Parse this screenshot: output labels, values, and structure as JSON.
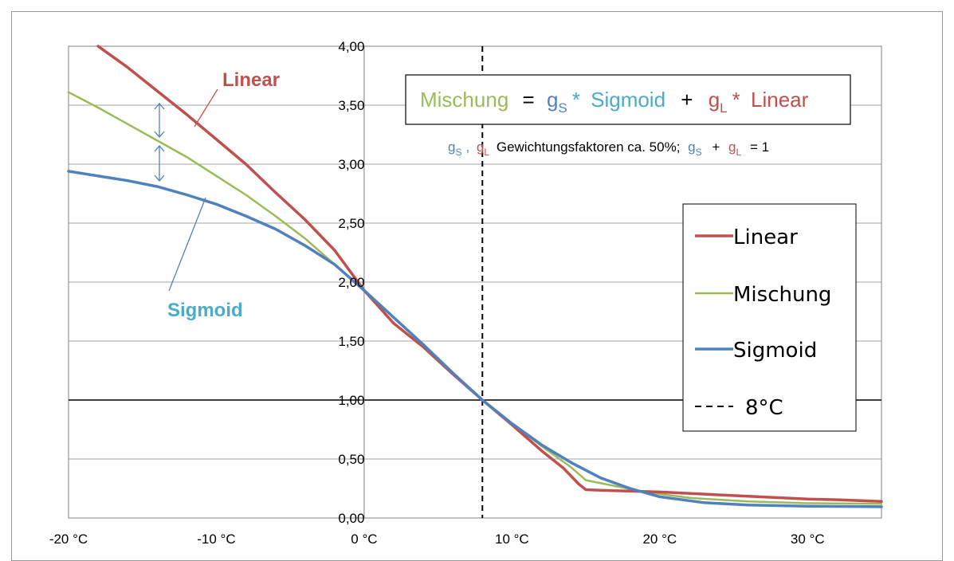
{
  "chart_data": {
    "type": "line",
    "xlim": [
      -20,
      35
    ],
    "ylim": [
      0,
      4
    ],
    "x_ticks": [
      {
        "value": -20,
        "label": "-20 °C"
      },
      {
        "value": -10,
        "label": "-10 °C"
      },
      {
        "value": 0,
        "label": "0 °C"
      },
      {
        "value": 10,
        "label": "10 °C"
      },
      {
        "value": 20,
        "label": "20 °C"
      },
      {
        "value": 30,
        "label": "30 °C"
      }
    ],
    "y_ticks": [
      {
        "value": 0,
        "label": "0,00"
      },
      {
        "value": 0.5,
        "label": "0,50"
      },
      {
        "value": 1,
        "label": "1,00"
      },
      {
        "value": 1.5,
        "label": "1,50"
      },
      {
        "value": 2,
        "label": "2,00"
      },
      {
        "value": 2.5,
        "label": "2,50"
      },
      {
        "value": 3,
        "label": "3,00"
      },
      {
        "value": 3.5,
        "label": "3,50"
      },
      {
        "value": 4,
        "label": "4,00"
      }
    ],
    "grid": "horizontal",
    "reference_lines": {
      "vertical_x": 8,
      "horizontal_y": 1
    },
    "series": [
      {
        "name": "Linear",
        "color": "#c0504d",
        "points": [
          [
            -18,
            4.0
          ],
          [
            -16,
            3.82
          ],
          [
            -14,
            3.62
          ],
          [
            -12,
            3.42
          ],
          [
            -10,
            3.21
          ],
          [
            -8,
            3.0
          ],
          [
            -6,
            2.76
          ],
          [
            -4,
            2.53
          ],
          [
            -2,
            2.27
          ],
          [
            0,
            1.93
          ],
          [
            2,
            1.65
          ],
          [
            4,
            1.45
          ],
          [
            6,
            1.22
          ],
          [
            8,
            1.0
          ],
          [
            10,
            0.79
          ],
          [
            12,
            0.57
          ],
          [
            13.5,
            0.42
          ],
          [
            14.5,
            0.29
          ],
          [
            15,
            0.24
          ],
          [
            16,
            0.235
          ],
          [
            20,
            0.22
          ],
          [
            25,
            0.19
          ],
          [
            30,
            0.16
          ],
          [
            32,
            0.155
          ],
          [
            35,
            0.14
          ]
        ]
      },
      {
        "name": "Mischung",
        "color": "#9bbb59",
        "points": [
          [
            -20,
            3.61
          ],
          [
            -18,
            3.48
          ],
          [
            -16,
            3.34
          ],
          [
            -14,
            3.2
          ],
          [
            -12,
            3.06
          ],
          [
            -10,
            2.9
          ],
          [
            -8,
            2.74
          ],
          [
            -6,
            2.56
          ],
          [
            -4,
            2.37
          ],
          [
            -2,
            2.15
          ],
          [
            0,
            1.93
          ],
          [
            2,
            1.65
          ],
          [
            4,
            1.45
          ],
          [
            6,
            1.22
          ],
          [
            8,
            1.0
          ],
          [
            10,
            0.8
          ],
          [
            12,
            0.61
          ],
          [
            14,
            0.43
          ],
          [
            15,
            0.32
          ],
          [
            17,
            0.27
          ],
          [
            19,
            0.22
          ],
          [
            22,
            0.17
          ],
          [
            26,
            0.14
          ],
          [
            30,
            0.125
          ],
          [
            35,
            0.12
          ]
        ]
      },
      {
        "name": "Sigmoid",
        "color": "#4f81bd",
        "points": [
          [
            -20,
            2.94
          ],
          [
            -18,
            2.9
          ],
          [
            -16,
            2.86
          ],
          [
            -14,
            2.81
          ],
          [
            -12,
            2.74
          ],
          [
            -10,
            2.66
          ],
          [
            -8,
            2.56
          ],
          [
            -6,
            2.45
          ],
          [
            -4,
            2.31
          ],
          [
            -2,
            2.15
          ],
          [
            0,
            1.93
          ],
          [
            2,
            1.7
          ],
          [
            4,
            1.47
          ],
          [
            6,
            1.23
          ],
          [
            8,
            1.0
          ],
          [
            10,
            0.8
          ],
          [
            12,
            0.62
          ],
          [
            14,
            0.47
          ],
          [
            16,
            0.34
          ],
          [
            18,
            0.25
          ],
          [
            20,
            0.18
          ],
          [
            23,
            0.13
          ],
          [
            26,
            0.11
          ],
          [
            30,
            0.1
          ],
          [
            35,
            0.095
          ]
        ]
      },
      {
        "name": "8°C",
        "color": "#000000",
        "dashed": true
      }
    ],
    "legend": {
      "placement": "right",
      "entries": [
        {
          "label": "Linear",
          "color": "#c0504d",
          "style": "solid-thick"
        },
        {
          "label": "Mischung",
          "color": "#9bbb59",
          "style": "solid"
        },
        {
          "label": "Sigmoid",
          "color": "#4f81bd",
          "style": "solid-thick"
        },
        {
          "label": "8°C",
          "color": "#000000",
          "style": "dashed"
        }
      ]
    },
    "annotations": {
      "linear_label": "Linear",
      "sigmoid_label": "Sigmoid",
      "formula": {
        "mischung": "Mischung",
        "equals": "=",
        "g": "g",
        "sub_s": "S",
        "sub_l": "L",
        "times": "*",
        "sigmoid": "Sigmoid",
        "plus": "+",
        "linear": "Linear"
      },
      "note": {
        "sep": ",",
        "text": "Gewichtungsfaktoren ca. 50%;",
        "plus": "+",
        "eq": "= 1"
      }
    }
  }
}
